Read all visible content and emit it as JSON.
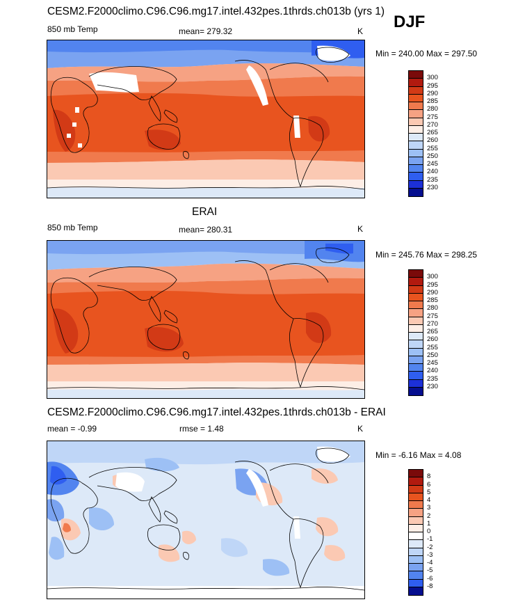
{
  "header": {
    "case_title": "CESM2.F2000climo.C96.C96.mg17.intel.432pes.1thrds.ch013b (yrs 1)",
    "season": "DJF"
  },
  "panels": [
    {
      "variable": "850 mb Temp",
      "mean_label": "mean= 279.32",
      "units": "K",
      "minmax": "Min = 240.00 Max = 297.50",
      "colorbar": [
        "300",
        "295",
        "290",
        "285",
        "280",
        "275",
        "270",
        "265",
        "260",
        "255",
        "250",
        "245",
        "240",
        "235",
        "230"
      ]
    },
    {
      "heading": "ERAI",
      "variable": "850 mb Temp",
      "mean_label": "mean= 280.31",
      "units": "K",
      "minmax": "Min = 245.76 Max = 298.25",
      "colorbar": [
        "300",
        "295",
        "290",
        "285",
        "280",
        "275",
        "270",
        "265",
        "260",
        "255",
        "250",
        "245",
        "240",
        "235",
        "230"
      ]
    },
    {
      "heading": "CESM2.F2000climo.C96.C96.mg17.intel.432pes.1thrds.ch013b - ERAI",
      "mean_label": "mean =  -0.99",
      "rmse_label": "rmse =   1.48",
      "units": "K",
      "minmax": "Min =  -6.16 Max =    4.08",
      "colorbar": [
        "8",
        "6",
        "5",
        "4",
        "3",
        "2",
        "1",
        "0",
        "-1",
        "-2",
        "-3",
        "-4",
        "-5",
        "-6",
        "-8"
      ]
    }
  ],
  "colors": {
    "temp_scale": [
      "#7a0a0a",
      "#b11a0f",
      "#d23a16",
      "#e8541f",
      "#f07a4d",
      "#f6a283",
      "#fbc9b3",
      "#fdeee6",
      "#dde9f8",
      "#bfd6f7",
      "#9dc0f5",
      "#7aa3f1",
      "#5284ef",
      "#2f5ef0",
      "#1c30d8",
      "#050e8f"
    ],
    "diff_scale": [
      "#7a0a0a",
      "#b11a0f",
      "#d23a16",
      "#e8541f",
      "#f07a4d",
      "#f6a283",
      "#fbc9b3",
      "#fdeee6",
      "#ffffff",
      "#dde9f8",
      "#bfd6f7",
      "#9dc0f5",
      "#7aa3f1",
      "#5284ef",
      "#2f5ef0",
      "#050e8f"
    ]
  }
}
